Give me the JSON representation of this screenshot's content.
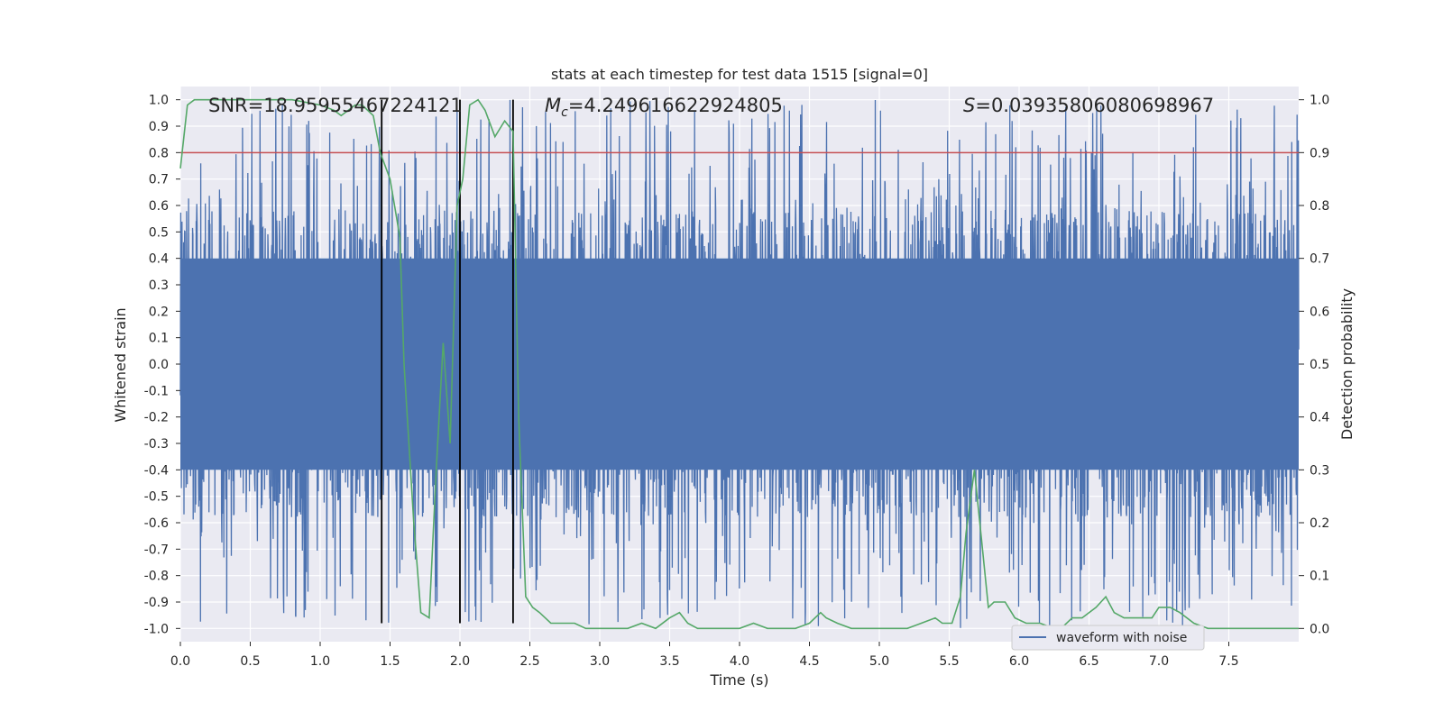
{
  "chart_data": {
    "type": "line",
    "title": "stats at each timestep for test data 1515 [signal=0]",
    "xlabel": "Time (s)",
    "ylabel": "Whitened strain",
    "y2label": "Detection probability",
    "xlim": [
      0.0,
      8.0
    ],
    "ylim": [
      -1.05,
      1.05
    ],
    "y2lim": [
      -0.025,
      1.025
    ],
    "xticks": [
      "0.0",
      "0.5",
      "1.0",
      "1.5",
      "2.0",
      "2.5",
      "3.0",
      "3.5",
      "4.0",
      "4.5",
      "5.0",
      "5.5",
      "6.0",
      "6.5",
      "7.0",
      "7.5"
    ],
    "yticks": [
      "1.0",
      "0.9",
      "0.8",
      "0.7",
      "0.6",
      "0.5",
      "0.4",
      "0.3",
      "0.2",
      "0.1",
      "0.0",
      "-0.1",
      "-0.2",
      "-0.3",
      "-0.4",
      "-0.5",
      "-0.6",
      "-0.7",
      "-0.8",
      "-0.9",
      "-1.0"
    ],
    "y2ticks": [
      "1.0",
      "0.9",
      "0.8",
      "0.7",
      "0.6",
      "0.5",
      "0.4",
      "0.3",
      "0.2",
      "0.1",
      "0.0"
    ],
    "annotations": {
      "snr": "SNR=18.95955467224121",
      "mc_symbol": "M",
      "mc_sub": "c",
      "mc_value": "=4.249616622924805",
      "s_symbol": "S",
      "s_value": "=0.03935806080698967"
    },
    "threshold": {
      "value": 0.8,
      "color": "#c44e52"
    },
    "vlines": [
      1.44,
      2.0,
      2.38
    ],
    "legend": {
      "label": "waveform with noise",
      "placement": "lower-right"
    },
    "series": [
      {
        "name": "waveform with noise",
        "color": "#4c72b0",
        "style": "dense noise, amplitude approx -1 to 1, core band -0.4 to 0.4"
      },
      {
        "name": "detection probability",
        "color": "#55a868",
        "x": [
          0.0,
          0.05,
          0.1,
          0.2,
          0.4,
          0.6,
          0.8,
          1.0,
          1.1,
          1.15,
          1.25,
          1.3,
          1.38,
          1.43,
          1.5,
          1.57,
          1.6,
          1.67,
          1.72,
          1.78,
          1.83,
          1.88,
          1.93,
          1.98,
          2.02,
          2.07,
          2.13,
          2.18,
          2.25,
          2.32,
          2.38,
          2.42,
          2.47,
          2.52,
          2.57,
          2.65,
          2.7,
          2.75,
          2.82,
          2.9,
          3.0,
          3.1,
          3.2,
          3.3,
          3.4,
          3.5,
          3.57,
          3.63,
          3.7,
          3.8,
          3.9,
          4.0,
          4.1,
          4.2,
          4.3,
          4.4,
          4.5,
          4.58,
          4.62,
          4.7,
          4.8,
          4.9,
          5.0,
          5.1,
          5.2,
          5.3,
          5.4,
          5.45,
          5.52,
          5.58,
          5.62,
          5.68,
          5.73,
          5.78,
          5.82,
          5.9,
          5.97,
          6.05,
          6.15,
          6.25,
          6.3,
          6.38,
          6.45,
          6.55,
          6.62,
          6.68,
          6.75,
          6.85,
          6.95,
          7.0,
          7.08,
          7.15,
          7.25,
          7.35,
          7.45,
          7.55,
          7.65,
          7.75,
          7.85,
          7.95,
          8.0
        ],
        "y": [
          0.87,
          0.99,
          1.0,
          1.0,
          1.0,
          1.0,
          1.0,
          0.99,
          0.98,
          0.97,
          0.99,
          0.99,
          0.97,
          0.9,
          0.85,
          0.74,
          0.5,
          0.2,
          0.03,
          0.02,
          0.3,
          0.54,
          0.35,
          0.8,
          0.85,
          0.99,
          1.0,
          0.98,
          0.93,
          0.96,
          0.94,
          0.4,
          0.06,
          0.04,
          0.03,
          0.01,
          0.01,
          0.01,
          0.01,
          0.0,
          0.0,
          0.0,
          0.0,
          0.01,
          0.0,
          0.02,
          0.03,
          0.01,
          0.0,
          0.0,
          0.0,
          0.0,
          0.01,
          0.0,
          0.0,
          0.0,
          0.01,
          0.03,
          0.02,
          0.01,
          0.0,
          0.0,
          0.0,
          0.0,
          0.0,
          0.01,
          0.02,
          0.01,
          0.01,
          0.06,
          0.18,
          0.3,
          0.17,
          0.04,
          0.05,
          0.05,
          0.02,
          0.01,
          0.01,
          0.0,
          0.0,
          0.02,
          0.02,
          0.04,
          0.06,
          0.03,
          0.02,
          0.02,
          0.02,
          0.04,
          0.04,
          0.03,
          0.01,
          0.0,
          0.0,
          0.0,
          0.0,
          0.0,
          0.0,
          0.0,
          0.0
        ]
      }
    ]
  }
}
